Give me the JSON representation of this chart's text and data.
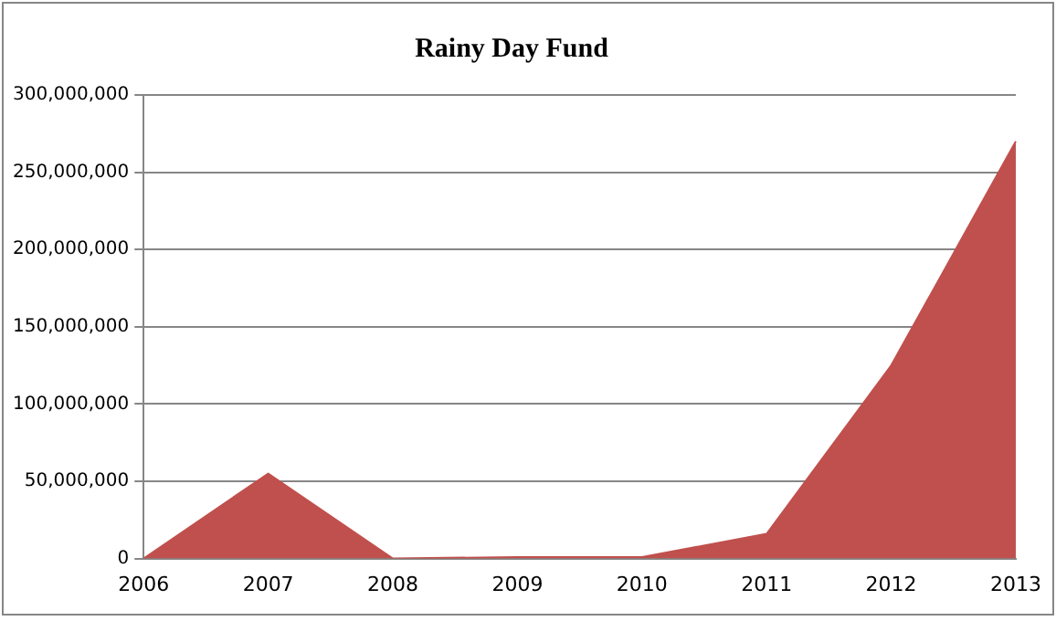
{
  "chart_data": {
    "type": "area",
    "title": "Rainy Day Fund",
    "categories": [
      "2006",
      "2007",
      "2008",
      "2009",
      "2010",
      "2011",
      "2012",
      "2013"
    ],
    "values": [
      0,
      55000000,
      0,
      1000000,
      1000000,
      16000000,
      125000000,
      270000000
    ],
    "color": "#c0504d",
    "ylim": [
      0,
      300000000
    ],
    "yticks": [
      0,
      {
        "value": 50000000,
        "label": "50,000,000"
      },
      {
        "value": 100000000,
        "label": "100,000,000"
      },
      {
        "value": 150000000,
        "label": "150,000,000"
      },
      {
        "value": 200000000,
        "label": "200,000,000"
      },
      {
        "value": 250000000,
        "label": "250,000,000"
      },
      {
        "value": 300000000,
        "label": "300,000,000"
      }
    ],
    "grid": "y",
    "legend": false
  }
}
